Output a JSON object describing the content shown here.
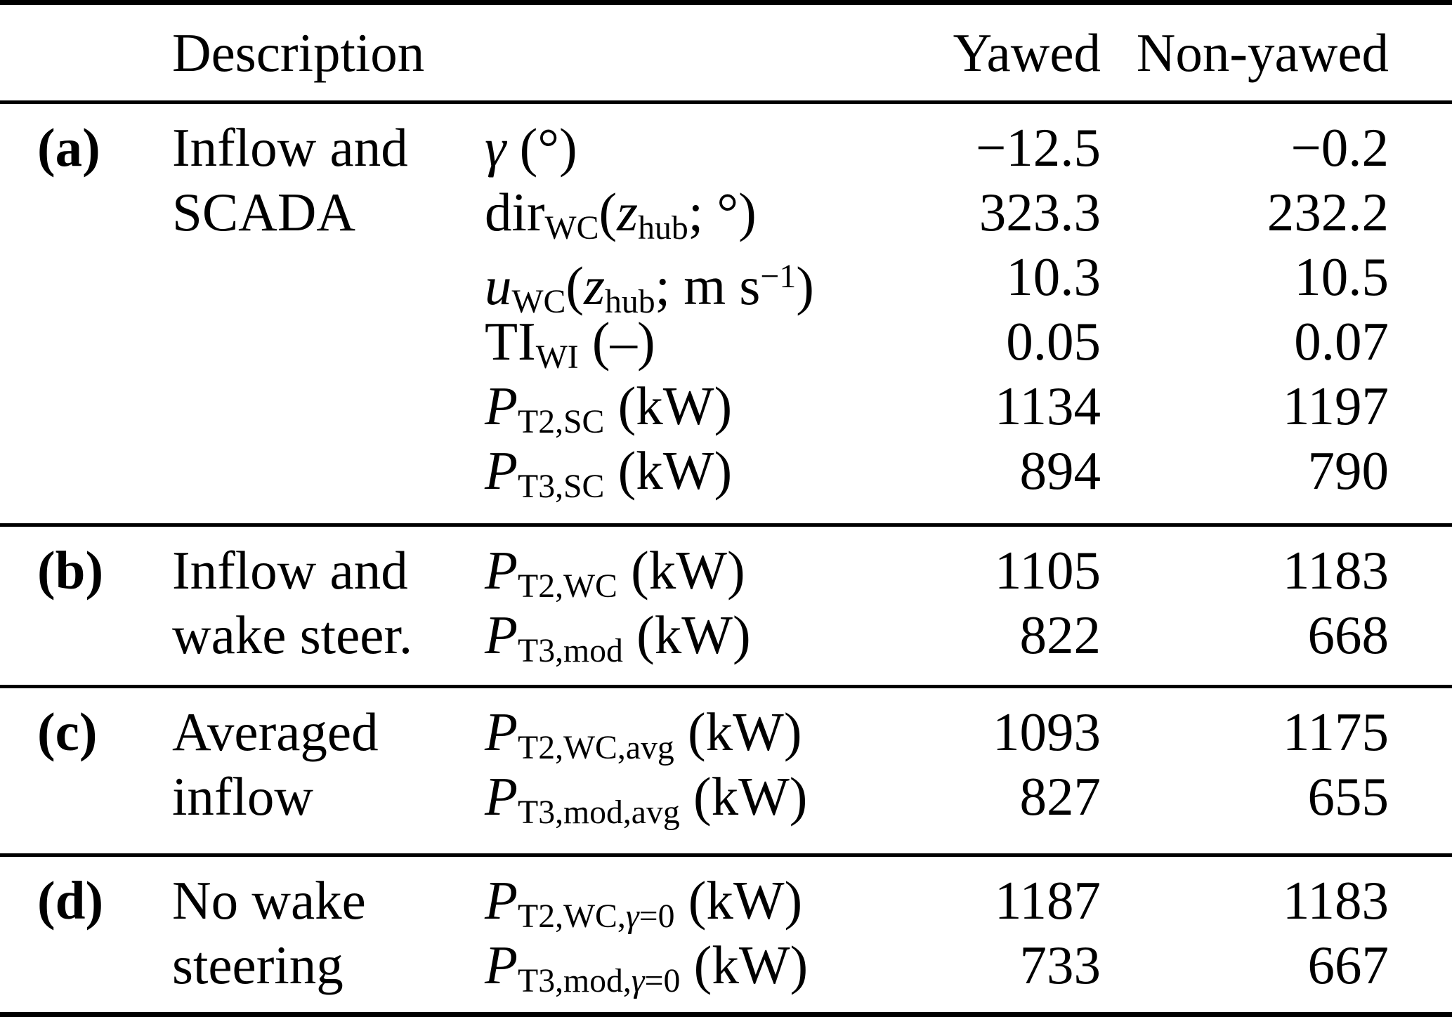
{
  "colors": {
    "background": "#ffffff",
    "text": "#000000",
    "rule": "#000000"
  },
  "table": {
    "header": {
      "description": "Description",
      "yawed": "Yawed",
      "non_yawed": "Non-yawed"
    },
    "sections": [
      {
        "label": "(a)",
        "description_lines": [
          "Inflow and",
          "SCADA"
        ],
        "rows": [
          {
            "quantity": [
              {
                "s": "i",
                "v": "γ"
              },
              {
                "s": "r",
                "v": " (°)"
              }
            ],
            "yawed": "−12.5",
            "non_yawed": "−0.2"
          },
          {
            "quantity": [
              {
                "s": "r",
                "v": "dir"
              },
              {
                "s": "sub",
                "v": "WC"
              },
              {
                "s": "r",
                "v": "("
              },
              {
                "s": "i",
                "v": "z"
              },
              {
                "s": "sub",
                "v": "hub"
              },
              {
                "s": "r",
                "v": "; °)"
              }
            ],
            "yawed": "323.3",
            "non_yawed": "232.2"
          },
          {
            "quantity": [
              {
                "s": "i",
                "v": "u"
              },
              {
                "s": "sub",
                "v": "WC"
              },
              {
                "s": "r",
                "v": "("
              },
              {
                "s": "i",
                "v": "z"
              },
              {
                "s": "sub",
                "v": "hub"
              },
              {
                "s": "r",
                "v": "; m s"
              },
              {
                "s": "sup",
                "v": "−1"
              },
              {
                "s": "r",
                "v": ")"
              }
            ],
            "yawed": "10.3",
            "non_yawed": "10.5"
          },
          {
            "quantity": [
              {
                "s": "r",
                "v": "TI"
              },
              {
                "s": "sub",
                "v": "WI"
              },
              {
                "s": "r",
                "v": " (–)"
              }
            ],
            "yawed": "0.05",
            "non_yawed": "0.07"
          },
          {
            "quantity": [
              {
                "s": "i",
                "v": "P"
              },
              {
                "s": "sub",
                "v": "T2,SC"
              },
              {
                "s": "r",
                "v": " (kW)"
              }
            ],
            "yawed": "1134",
            "non_yawed": "1197"
          },
          {
            "quantity": [
              {
                "s": "i",
                "v": "P"
              },
              {
                "s": "sub",
                "v": "T3,SC"
              },
              {
                "s": "r",
                "v": " (kW)"
              }
            ],
            "yawed": "894",
            "non_yawed": "790"
          }
        ]
      },
      {
        "label": "(b)",
        "description_lines": [
          "Inflow and",
          "wake steer."
        ],
        "rows": [
          {
            "quantity": [
              {
                "s": "i",
                "v": "P"
              },
              {
                "s": "sub",
                "v": "T2,WC"
              },
              {
                "s": "r",
                "v": " (kW)"
              }
            ],
            "yawed": "1105",
            "non_yawed": "1183"
          },
          {
            "quantity": [
              {
                "s": "i",
                "v": "P"
              },
              {
                "s": "sub",
                "v": "T3,mod"
              },
              {
                "s": "r",
                "v": " (kW)"
              }
            ],
            "yawed": "822",
            "non_yawed": "668"
          }
        ]
      },
      {
        "label": "(c)",
        "description_lines": [
          "Averaged",
          "inflow"
        ],
        "rows": [
          {
            "quantity": [
              {
                "s": "i",
                "v": "P"
              },
              {
                "s": "sub",
                "v": "T2,WC,avg"
              },
              {
                "s": "r",
                "v": " (kW)"
              }
            ],
            "yawed": "1093",
            "non_yawed": "1175"
          },
          {
            "quantity": [
              {
                "s": "i",
                "v": "P"
              },
              {
                "s": "sub",
                "v": "T3,mod,avg"
              },
              {
                "s": "r",
                "v": " (kW)"
              }
            ],
            "yawed": "827",
            "non_yawed": "655"
          }
        ]
      },
      {
        "label": "(d)",
        "description_lines": [
          "No wake",
          "steering"
        ],
        "rows": [
          {
            "quantity": [
              {
                "s": "i",
                "v": "P"
              },
              {
                "s": "sub",
                "v": "T2,WC,"
              },
              {
                "s": "subi",
                "v": "γ"
              },
              {
                "s": "sub",
                "v": "=0"
              },
              {
                "s": "r",
                "v": " (kW)"
              }
            ],
            "yawed": "1187",
            "non_yawed": "1183"
          },
          {
            "quantity": [
              {
                "s": "i",
                "v": "P"
              },
              {
                "s": "sub",
                "v": "T3,mod,"
              },
              {
                "s": "subi",
                "v": "γ"
              },
              {
                "s": "sub",
                "v": "=0"
              },
              {
                "s": "r",
                "v": " (kW)"
              }
            ],
            "yawed": "733",
            "non_yawed": "667"
          }
        ]
      }
    ]
  }
}
